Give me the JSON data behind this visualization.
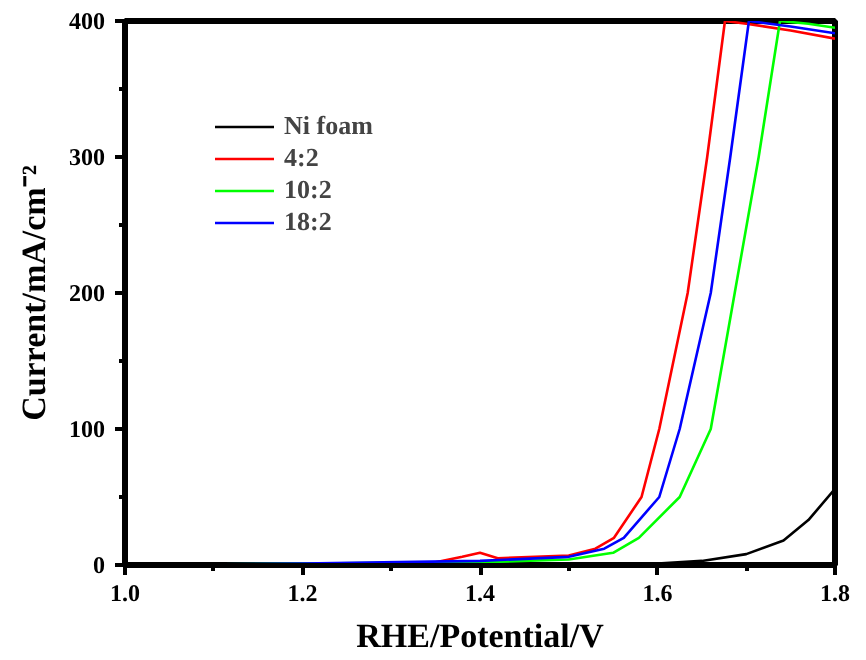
{
  "chart_data": {
    "type": "line",
    "xlabel": "RHE/Potential/V",
    "ylabel": "Current/mA/cm⁻²",
    "xlim": [
      1.0,
      1.8
    ],
    "ylim": [
      0,
      400
    ],
    "xticks": [
      {
        "value": 1.0,
        "label": "1.0"
      },
      1.2,
      1.4,
      1.6,
      1.8
    ],
    "yticks": [
      0,
      100,
      200,
      300,
      400
    ],
    "grid": false,
    "legend": "top left",
    "line_style": "solid",
    "series": [
      {
        "name": "Ni foam",
        "color": "#000000",
        "x": [
          1.0,
          1.3,
          1.5,
          1.6,
          1.65,
          1.7,
          1.742,
          1.77,
          1.8
        ],
        "values": [
          0,
          0,
          0,
          1,
          3,
          8,
          18,
          33,
          56
        ]
      },
      {
        "name": "4:2",
        "color": "#ff0000",
        "x": [
          1.0,
          1.2,
          1.35,
          1.38,
          1.4,
          1.42,
          1.5,
          1.53,
          1.551,
          1.582,
          1.602,
          1.634,
          1.656,
          1.676,
          1.7,
          1.75,
          1.8
        ],
        "values": [
          0,
          0,
          2,
          6,
          9,
          5,
          7,
          12,
          20,
          50,
          100,
          200,
          300,
          400,
          398,
          393,
          387
        ]
      },
      {
        "name": "10:2",
        "color": "#00ff00",
        "x": [
          1.0,
          1.2,
          1.4,
          1.5,
          1.55,
          1.579,
          1.625,
          1.66,
          1.687,
          1.714,
          1.738,
          1.77,
          1.8
        ],
        "values": [
          0,
          1,
          2,
          4,
          9,
          20,
          50,
          100,
          200,
          300,
          400,
          398,
          395
        ]
      },
      {
        "name": "18:2",
        "color": "#0000ff",
        "x": [
          1.0,
          1.2,
          1.4,
          1.5,
          1.54,
          1.562,
          1.602,
          1.625,
          1.66,
          1.682,
          1.703,
          1.75,
          1.8
        ],
        "values": [
          0,
          1,
          3,
          6,
          12,
          20,
          50,
          100,
          200,
          300,
          400,
          396,
          391
        ]
      }
    ]
  }
}
